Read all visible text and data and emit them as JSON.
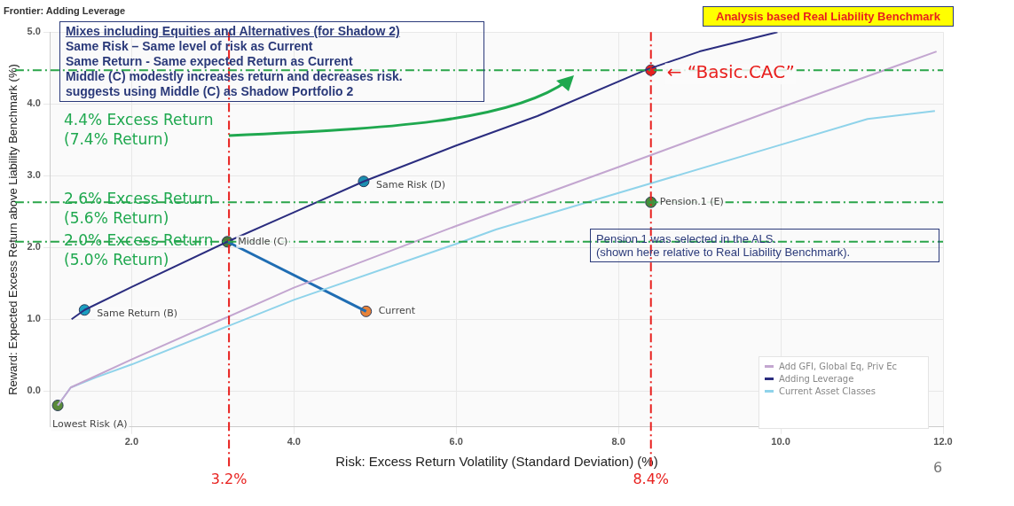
{
  "chart_data": {
    "type": "line",
    "title": "Frontier: Adding Leverage",
    "xlabel": "Risk: Excess Return Volatility (Standard Deviation) (%)",
    "ylabel": "Reward: Expected Excess Return above Liability Benchmark (%)",
    "xlim": [
      1.0,
      12.0
    ],
    "ylim": [
      -0.5,
      5.0
    ],
    "xticks": [
      {
        "value": 2,
        "label": "2.0"
      },
      {
        "value": 4,
        "label": "4.0"
      },
      {
        "value": 6,
        "label": "6.0"
      },
      {
        "value": 8,
        "label": "8.0"
      },
      {
        "value": 10,
        "label": "10.0"
      },
      {
        "value": 12,
        "label": "12.0"
      }
    ],
    "yticks": [
      {
        "value": 0,
        "label": "0.0"
      },
      {
        "value": 1,
        "label": "1.0"
      },
      {
        "value": 2,
        "label": "2.0"
      },
      {
        "value": 3,
        "label": "3.0"
      },
      {
        "value": 4,
        "label": "4.0"
      },
      {
        "value": 5,
        "label": "5.0"
      }
    ],
    "grid": true,
    "legend": "bottom right",
    "marker": "none",
    "line_style": "solid",
    "series": [
      {
        "name": "Add GFI, Global Eq, Priv Ec",
        "color": "#c3a6d0",
        "x": [
          1.09,
          1.25,
          1.56,
          2.0,
          4.0,
          6.0,
          8.0,
          10.0,
          11.92
        ],
        "values": [
          -0.2,
          0.05,
          0.21,
          0.44,
          1.44,
          2.3,
          3.12,
          3.95,
          4.73
        ]
      },
      {
        "name": "Adding Leverage",
        "color": "#2b2d7f",
        "x": [
          1.26,
          1.42,
          2.0,
          3.18,
          4.0,
          4.86,
          6.0,
          7.0,
          8.33,
          9.0,
          9.96
        ],
        "values": [
          1.0,
          1.13,
          1.45,
          2.08,
          2.49,
          2.92,
          3.42,
          3.83,
          4.47,
          4.73,
          5.0
        ]
      },
      {
        "name": "Current Asset Classes",
        "color": "#8fd3ea",
        "x": [
          1.09,
          1.25,
          1.56,
          2.0,
          4.0,
          6.0,
          6.49,
          8.0,
          10.0,
          11.07,
          11.9
        ],
        "values": [
          -0.2,
          0.05,
          0.19,
          0.37,
          1.27,
          2.05,
          2.25,
          2.76,
          3.43,
          3.79,
          3.9
        ]
      },
      {
        "type": "line",
        "color": "#1f6db3",
        "x": [
          4.89,
          3.18
        ],
        "values": [
          1.11,
          2.08
        ]
      },
      {
        "type": "scatter",
        "marker": "circle",
        "x": [
          1.09,
          1.42,
          3.18,
          4.86,
          8.4,
          4.89,
          8.4
        ],
        "values": [
          -0.2,
          1.13,
          2.08,
          2.92,
          2.63,
          1.11,
          4.47
        ],
        "colors": [
          "#5a8a3a",
          "#1a9fc0",
          "#4a7a3a",
          "#1a8fb0",
          "#4a8a3a",
          "#e8833a",
          "#e8201e"
        ]
      }
    ],
    "ref_lines": [
      {
        "axis": "x",
        "value": 3.2,
        "label": "3.2%",
        "color": "#e8201e",
        "line_style": "dashed"
      },
      {
        "axis": "x",
        "value": 8.4,
        "label": "8.4%",
        "color": "#e8201e",
        "line_style": "dashed"
      },
      {
        "axis": "y",
        "value": 4.47,
        "color": "#2aa54a",
        "line_style": "dashed"
      },
      {
        "axis": "y",
        "value": 2.63,
        "color": "#2aa54a",
        "line_style": "dashed"
      },
      {
        "axis": "y",
        "value": 2.08,
        "color": "#2aa54a",
        "line_style": "dashed"
      }
    ],
    "annotations": [
      "Analysis based Real Liability Benchmark",
      "Mixes including Equities and Alternatives (for Shadow 2)",
      "Same Risk –    Same level of risk as Current",
      "Same Return - Same expected Return as Current",
      "Middle (C) modestly increases return and decreases risk.",
      "suggests using Middle (C) as Shadow Portfolio 2",
      "2.6% Excess Return\n(5.6% Return)",
      "2.0% Excess Return\n(5.0% Return)",
      "Pension.1 was selected in the ALS.\n(shown here relative to  Real Liability Benchmark).",
      "6",
      "4.4% Excess Return\n(7.4% Return)",
      {
        "text": "Lowest Risk (A)",
        "x": 1.09,
        "y": -0.2
      },
      {
        "text": "Same Return (B)",
        "x": 1.42,
        "y": 1.13
      },
      {
        "text": "Middle (C)",
        "x": 3.18,
        "y": 2.08
      },
      {
        "text": "Same Risk (D)",
        "x": 4.86,
        "y": 2.92
      },
      {
        "text": "Pension.1 (E)",
        "x": 8.4,
        "y": 2.63
      },
      {
        "text": "Current",
        "x": 4.89,
        "y": 1.11
      },
      {
        "text": "← “Basic.CAC”",
        "x": 8.4,
        "y": 4.47
      }
    ]
  }
}
